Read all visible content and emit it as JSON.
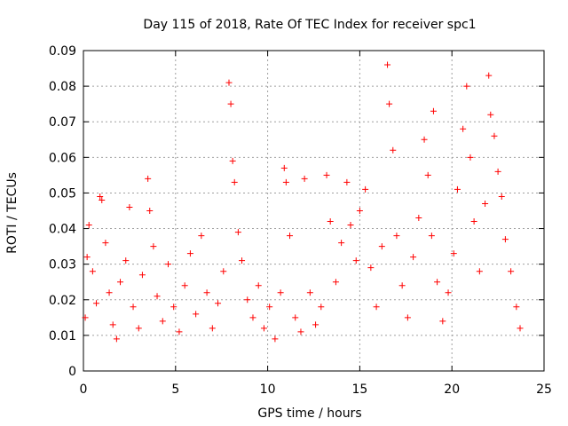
{
  "chart_data": {
    "type": "scatter",
    "title": "Day 115 of 2018, Rate Of TEC Index for receiver spc1",
    "xlabel": "GPS time / hours",
    "ylabel": "ROTI / TECUs",
    "xlim": [
      0,
      25
    ],
    "ylim": [
      0,
      0.09
    ],
    "xticks": [
      "0",
      "5",
      "10",
      "15",
      "20",
      "25"
    ],
    "yticks": [
      "0",
      "0.01",
      "0.02",
      "0.03",
      "0.04",
      "0.05",
      "0.06",
      "0.07",
      "0.08",
      "0.09"
    ],
    "grid": true,
    "marker": "+",
    "color": "#ff0000",
    "series": [
      {
        "name": "spc1",
        "points": [
          [
            0.1,
            0.015
          ],
          [
            0.2,
            0.032
          ],
          [
            0.3,
            0.041
          ],
          [
            0.5,
            0.028
          ],
          [
            0.7,
            0.019
          ],
          [
            0.9,
            0.049
          ],
          [
            1.0,
            0.048
          ],
          [
            1.2,
            0.036
          ],
          [
            1.4,
            0.022
          ],
          [
            1.6,
            0.013
          ],
          [
            1.8,
            0.009
          ],
          [
            2.0,
            0.025
          ],
          [
            2.3,
            0.031
          ],
          [
            2.5,
            0.046
          ],
          [
            2.7,
            0.018
          ],
          [
            3.0,
            0.012
          ],
          [
            3.2,
            0.027
          ],
          [
            3.5,
            0.054
          ],
          [
            3.6,
            0.045
          ],
          [
            3.8,
            0.035
          ],
          [
            4.0,
            0.021
          ],
          [
            4.3,
            0.014
          ],
          [
            4.6,
            0.03
          ],
          [
            4.9,
            0.018
          ],
          [
            5.2,
            0.011
          ],
          [
            5.5,
            0.024
          ],
          [
            5.8,
            0.033
          ],
          [
            6.1,
            0.016
          ],
          [
            6.4,
            0.038
          ],
          [
            6.7,
            0.022
          ],
          [
            7.0,
            0.012
          ],
          [
            7.3,
            0.019
          ],
          [
            7.6,
            0.028
          ],
          [
            7.9,
            0.081
          ],
          [
            8.0,
            0.075
          ],
          [
            8.1,
            0.059
          ],
          [
            8.2,
            0.053
          ],
          [
            8.4,
            0.039
          ],
          [
            8.6,
            0.031
          ],
          [
            8.9,
            0.02
          ],
          [
            9.2,
            0.015
          ],
          [
            9.5,
            0.024
          ],
          [
            9.8,
            0.012
          ],
          [
            10.1,
            0.018
          ],
          [
            10.4,
            0.009
          ],
          [
            10.7,
            0.022
          ],
          [
            10.9,
            0.057
          ],
          [
            11.0,
            0.053
          ],
          [
            11.2,
            0.038
          ],
          [
            11.5,
            0.015
          ],
          [
            11.8,
            0.011
          ],
          [
            12.0,
            0.054
          ],
          [
            12.3,
            0.022
          ],
          [
            12.6,
            0.013
          ],
          [
            12.9,
            0.018
          ],
          [
            13.2,
            0.055
          ],
          [
            13.4,
            0.042
          ],
          [
            13.7,
            0.025
          ],
          [
            14.0,
            0.036
          ],
          [
            14.3,
            0.053
          ],
          [
            14.5,
            0.041
          ],
          [
            14.8,
            0.031
          ],
          [
            15.0,
            0.045
          ],
          [
            15.3,
            0.051
          ],
          [
            15.6,
            0.029
          ],
          [
            15.9,
            0.018
          ],
          [
            16.2,
            0.035
          ],
          [
            16.5,
            0.086
          ],
          [
            16.6,
            0.075
          ],
          [
            16.8,
            0.062
          ],
          [
            17.0,
            0.038
          ],
          [
            17.3,
            0.024
          ],
          [
            17.6,
            0.015
          ],
          [
            17.9,
            0.032
          ],
          [
            18.2,
            0.043
          ],
          [
            18.5,
            0.065
          ],
          [
            18.7,
            0.055
          ],
          [
            18.9,
            0.038
          ],
          [
            19.0,
            0.073
          ],
          [
            19.2,
            0.025
          ],
          [
            19.5,
            0.014
          ],
          [
            19.8,
            0.022
          ],
          [
            20.1,
            0.033
          ],
          [
            20.3,
            0.051
          ],
          [
            20.6,
            0.068
          ],
          [
            20.8,
            0.08
          ],
          [
            21.0,
            0.06
          ],
          [
            21.2,
            0.042
          ],
          [
            21.5,
            0.028
          ],
          [
            21.8,
            0.047
          ],
          [
            22.0,
            0.083
          ],
          [
            22.1,
            0.072
          ],
          [
            22.3,
            0.066
          ],
          [
            22.5,
            0.056
          ],
          [
            22.7,
            0.049
          ],
          [
            22.9,
            0.037
          ],
          [
            23.2,
            0.028
          ],
          [
            23.5,
            0.018
          ],
          [
            23.7,
            0.012
          ]
        ]
      }
    ]
  }
}
